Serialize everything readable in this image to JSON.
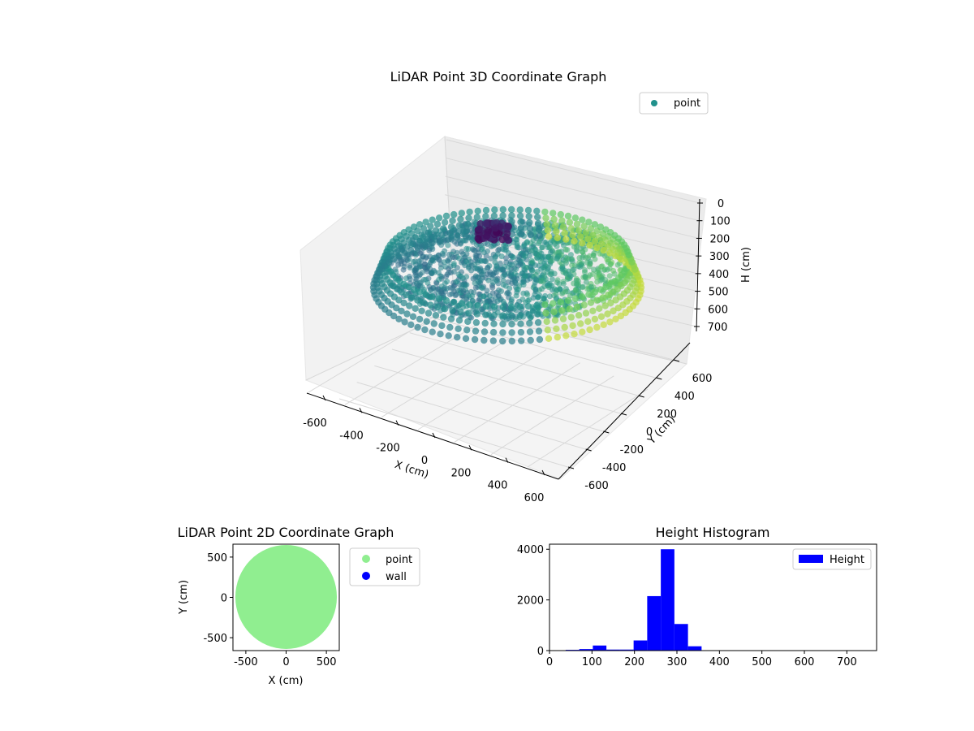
{
  "chart_data": [
    {
      "type": "scatter3d",
      "title": "LiDAR Point 3D Coordinate Graph",
      "xlabel": "X (cm)",
      "ylabel": "Y (cm)",
      "zlabel": "H (cm)",
      "xticks": [
        -600,
        -400,
        -200,
        0,
        200,
        400,
        600
      ],
      "yticks": [
        -600,
        -400,
        -200,
        0,
        200,
        400,
        600
      ],
      "zticks": [
        0,
        100,
        200,
        300,
        400,
        500,
        600,
        700
      ],
      "xlim": [
        -650,
        650
      ],
      "ylim": [
        -650,
        650
      ],
      "zlim": [
        0,
        740
      ],
      "zaxis_inverted": true,
      "colormap": "viridis",
      "legend": {
        "entries": [
          {
            "label": "point",
            "color": "#21918c"
          }
        ],
        "placement": "top-right"
      },
      "grid": true
    },
    {
      "type": "scatter",
      "title": "LiDAR Point 2D Coordinate Graph",
      "xlabel": "X (cm)",
      "ylabel": "Y (cm)",
      "xticks": [
        -500,
        0,
        500
      ],
      "yticks": [
        -500,
        0,
        500
      ],
      "xlim": [
        -660,
        660
      ],
      "ylim": [
        -660,
        660
      ],
      "series": [
        {
          "name": "point",
          "color": "#90ee90",
          "shape": "disk",
          "extent": {
            "x": [
              -630,
              630
            ],
            "y": [
              -640,
              650
            ]
          }
        },
        {
          "name": "wall",
          "color": "#0000ff",
          "points": []
        }
      ],
      "legend": {
        "placement": "outside-right"
      },
      "grid": false
    },
    {
      "type": "bar",
      "title": "Height Histogram",
      "bin_edges": [
        38,
        70,
        102,
        134,
        166,
        198,
        230,
        262,
        294,
        326,
        358,
        390
      ],
      "values": [
        30,
        60,
        200,
        40,
        40,
        400,
        2150,
        4000,
        1050,
        170,
        10
      ],
      "xticks": [
        0,
        100,
        200,
        300,
        400,
        500,
        600,
        700
      ],
      "yticks": [
        0,
        2000,
        4000
      ],
      "xlim": [
        0,
        770
      ],
      "ylim": [
        0,
        4200
      ],
      "series": [
        {
          "name": "Height",
          "color": "#0000ff"
        }
      ],
      "legend": {
        "placement": "top-right"
      },
      "grid": false
    }
  ]
}
